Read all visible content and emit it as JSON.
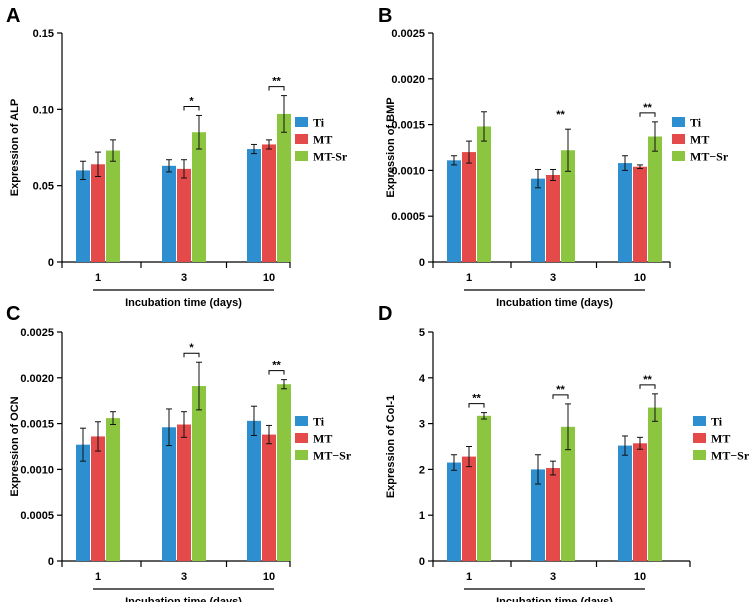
{
  "series_colors": {
    "Ti": "#2e8fd0",
    "MT": "#e54a4a",
    "MT-Sr": "#8cc641"
  },
  "chart_data": [
    {
      "panel": "A",
      "type": "bar",
      "ylabel": "Expression of ALP",
      "xlabel": "Incubation time (days)",
      "categories": [
        "1",
        "3",
        "10"
      ],
      "yticks": [
        "0",
        "0.05",
        "0.10",
        "0.15"
      ],
      "ylim": [
        0,
        0.15
      ],
      "legend": [
        "Ti",
        "MT",
        "MT-Sr"
      ],
      "series": [
        {
          "name": "Ti",
          "values": [
            0.06,
            0.063,
            0.074
          ],
          "errors": [
            0.006,
            0.004,
            0.003
          ]
        },
        {
          "name": "MT",
          "values": [
            0.064,
            0.061,
            0.077
          ],
          "errors": [
            0.008,
            0.006,
            0.003
          ]
        },
        {
          "name": "MT-Sr",
          "values": [
            0.073,
            0.085,
            0.097
          ],
          "errors": [
            0.007,
            0.011,
            0.012
          ]
        }
      ],
      "significance": [
        {
          "category_index": 1,
          "label": "*",
          "bracket": true
        },
        {
          "category_index": 2,
          "label": "**",
          "bracket": true
        }
      ]
    },
    {
      "panel": "B",
      "type": "bar",
      "ylabel": "Expression of BMP",
      "xlabel": "Incubation time (days)",
      "categories": [
        "1",
        "3",
        "10"
      ],
      "yticks": [
        "0",
        "0.0005",
        "0.0010",
        "0.0015",
        "0.0020",
        "0.0025"
      ],
      "ylim": [
        0,
        0.0025
      ],
      "legend": [
        "Ti",
        "MT",
        "MT−Sr"
      ],
      "series": [
        {
          "name": "Ti",
          "values": [
            0.00111,
            0.00091,
            0.00108
          ],
          "errors": [
            5e-05,
            0.0001,
            8e-05
          ]
        },
        {
          "name": "MT",
          "values": [
            0.0012,
            0.00095,
            0.00104
          ],
          "errors": [
            0.00012,
            6e-05,
            2e-05
          ]
        },
        {
          "name": "MT-Sr",
          "values": [
            0.00148,
            0.00122,
            0.00137
          ],
          "errors": [
            0.00016,
            0.00023,
            0.00016
          ]
        }
      ],
      "significance": [
        {
          "category_index": 1,
          "label": "**",
          "bracket": false
        },
        {
          "category_index": 2,
          "label": "**",
          "bracket": true
        }
      ]
    },
    {
      "panel": "C",
      "type": "bar",
      "ylabel": "Expression of OCN",
      "xlabel": "Incubation time (days)",
      "categories": [
        "1",
        "3",
        "10"
      ],
      "yticks": [
        "0",
        "0.0005",
        "0.0010",
        "0.0015",
        "0.0020",
        "0.0025"
      ],
      "ylim": [
        0,
        0.0025
      ],
      "legend": [
        "Ti",
        "MT",
        "MT−Sr"
      ],
      "series": [
        {
          "name": "Ti",
          "values": [
            0.00127,
            0.00146,
            0.00153
          ],
          "errors": [
            0.00018,
            0.0002,
            0.00016
          ]
        },
        {
          "name": "MT",
          "values": [
            0.00136,
            0.00149,
            0.00138
          ],
          "errors": [
            0.00016,
            0.00014,
            0.0001
          ]
        },
        {
          "name": "MT-Sr",
          "values": [
            0.00156,
            0.00191,
            0.00193
          ],
          "errors": [
            7e-05,
            0.00026,
            5e-05
          ]
        }
      ],
      "significance": [
        {
          "category_index": 1,
          "label": "*",
          "bracket": true
        },
        {
          "category_index": 2,
          "label": "**",
          "bracket": true
        }
      ]
    },
    {
      "panel": "D",
      "type": "bar",
      "ylabel": "Expression of Col-1",
      "xlabel": "Incubation time (days)",
      "categories": [
        "1",
        "3",
        "10"
      ],
      "yticks": [
        "0",
        "1",
        "2",
        "3",
        "4",
        "5"
      ],
      "ylim": [
        0,
        5
      ],
      "legend": [
        "Ti",
        "MT",
        "MT−Sr"
      ],
      "series": [
        {
          "name": "Ti",
          "values": [
            2.15,
            2.0,
            2.52
          ],
          "errors": [
            0.17,
            0.32,
            0.21
          ]
        },
        {
          "name": "MT",
          "values": [
            2.28,
            2.03,
            2.57
          ],
          "errors": [
            0.22,
            0.15,
            0.13
          ]
        },
        {
          "name": "MT-Sr",
          "values": [
            3.17,
            2.93,
            3.35
          ],
          "errors": [
            0.07,
            0.5,
            0.3
          ]
        }
      ],
      "significance": [
        {
          "category_index": 0,
          "label": "**",
          "bracket": true
        },
        {
          "category_index": 1,
          "label": "**",
          "bracket": true
        },
        {
          "category_index": 2,
          "label": "**",
          "bracket": true
        }
      ]
    }
  ]
}
